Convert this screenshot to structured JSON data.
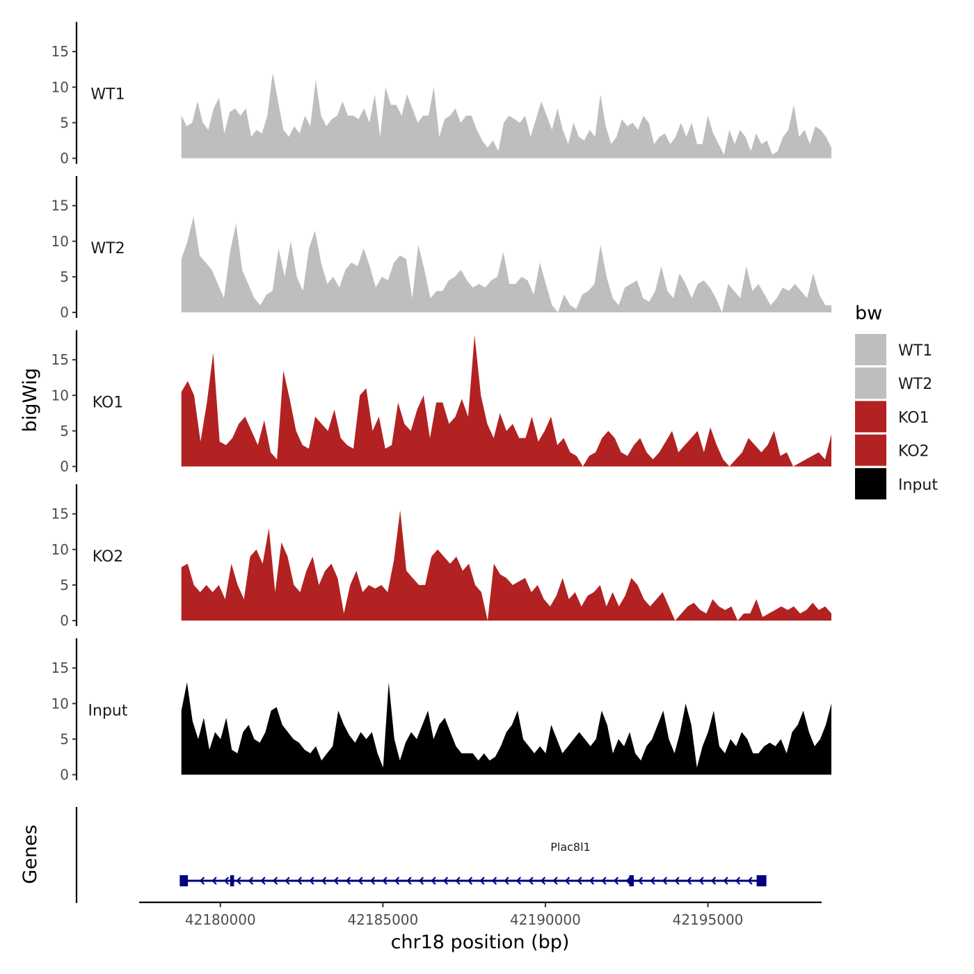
{
  "chart_data": {
    "type": "area",
    "ylabel": "bigWig",
    "xlabel": "chr18 position (bp)",
    "genes_label": "Genes",
    "xlim": [
      42177500,
      42198500
    ],
    "ylim": [
      0,
      19.5
    ],
    "y_ticks": [
      0,
      5,
      10,
      15
    ],
    "x_ticks": [
      42180000,
      42185000,
      42190000,
      42195000
    ],
    "x_tick_labels": [
      "42180000",
      "42185000",
      "42190000",
      "42195000"
    ],
    "x_start": 42178800,
    "x_end": 42198800,
    "legend": {
      "title": "bw",
      "entries": [
        {
          "label": "WT1",
          "color": "#bebebe"
        },
        {
          "label": "WT2",
          "color": "#bebebe"
        },
        {
          "label": "KO1",
          "color": "#b22222"
        },
        {
          "label": "KO2",
          "color": "#b22222"
        },
        {
          "label": "Input",
          "color": "#000000"
        }
      ]
    },
    "series": [
      {
        "name": "WT1",
        "color": "#bebebe",
        "values": [
          6,
          4.5,
          5,
          8,
          5,
          4,
          7,
          8.5,
          3.5,
          6.5,
          7,
          6,
          7,
          3,
          4,
          3.5,
          6,
          12,
          8,
          4,
          3,
          4.5,
          3.5,
          6,
          4.5,
          11,
          6,
          4.5,
          5.5,
          6,
          8,
          6,
          6,
          5.5,
          7,
          5,
          9,
          3,
          10,
          7.5,
          7.5,
          6,
          9,
          7,
          5,
          6,
          6,
          10,
          3,
          5.5,
          6,
          7,
          5,
          6,
          6,
          4,
          2.5,
          1.5,
          2.5,
          1,
          5,
          6,
          5.5,
          5,
          6,
          3,
          5.5,
          8,
          6,
          4,
          7,
          4,
          2,
          5,
          3,
          2.5,
          4,
          3,
          9,
          4.5,
          2,
          3,
          5.5,
          4.5,
          5,
          4,
          6,
          5,
          2,
          3,
          3.5,
          2,
          3,
          5,
          3,
          5,
          2,
          2,
          6,
          3.5,
          2,
          0.5,
          4,
          2,
          4,
          3,
          1,
          3.5,
          2,
          2.5,
          0.5,
          1,
          3,
          4,
          7.5,
          3,
          4,
          2,
          4.5,
          4,
          3,
          1.5
        ]
      },
      {
        "name": "WT2",
        "color": "#bebebe",
        "values": [
          7.5,
          10,
          13.5,
          8,
          7,
          6,
          4,
          2,
          8.5,
          12.5,
          6,
          4,
          2,
          1,
          2.5,
          3,
          9,
          5,
          10,
          5,
          3,
          9,
          11.5,
          7,
          4,
          5,
          3.5,
          6,
          7,
          6.5,
          9,
          6.5,
          3.5,
          5,
          4.5,
          7,
          8,
          7.5,
          2,
          9.5,
          6,
          2,
          3,
          3,
          4.5,
          5,
          6,
          4.5,
          3.5,
          4,
          3.5,
          4.5,
          5,
          8.5,
          4,
          4,
          5,
          4.5,
          2.5,
          7,
          4,
          1,
          0,
          2.5,
          1,
          0.5,
          2.5,
          3,
          4,
          9.5,
          5,
          2,
          1,
          3.5,
          4,
          4.5,
          2,
          1.5,
          3,
          6.5,
          3,
          2,
          5.5,
          4,
          2,
          4,
          4.5,
          3.5,
          2,
          0,
          4,
          3,
          2,
          6.5,
          3,
          4,
          2.5,
          1,
          2,
          3.5,
          3,
          4,
          3,
          2,
          5.5,
          2.5,
          1,
          1
        ]
      },
      {
        "name": "KO1",
        "color": "#b22222",
        "values": [
          10.5,
          12,
          10,
          3.5,
          9,
          16,
          3.5,
          3,
          4,
          6,
          7,
          5,
          3,
          6.5,
          2,
          1,
          13.5,
          9.5,
          5,
          3,
          2.5,
          7,
          6,
          5,
          8,
          4,
          3,
          2.5,
          10,
          11,
          5,
          7,
          2.5,
          3,
          9,
          6,
          5,
          8,
          10,
          4,
          9,
          9,
          6,
          7,
          9.5,
          7,
          18.5,
          10,
          6,
          4,
          7.5,
          5,
          6,
          4,
          4,
          7,
          3.5,
          5,
          7,
          3,
          4,
          2,
          1.5,
          0,
          1.5,
          2,
          4,
          5,
          4,
          2,
          1.5,
          3,
          4,
          2,
          1,
          2,
          3.5,
          5,
          2,
          3,
          4,
          5,
          2,
          5.5,
          3,
          1,
          0,
          1,
          2,
          4,
          3,
          2,
          3,
          5,
          1.5,
          2,
          0,
          0.5,
          1,
          1.5,
          2,
          1,
          4.5
        ]
      },
      {
        "name": "KO2",
        "color": "#b22222",
        "values": [
          7.5,
          8,
          5,
          4,
          5,
          4,
          5,
          3,
          8,
          5,
          3,
          9,
          10,
          8,
          13,
          4,
          11,
          9,
          5,
          4,
          7,
          9,
          5,
          7,
          8,
          6,
          1,
          5,
          7,
          4,
          5,
          4.5,
          5,
          4,
          8.5,
          15.5,
          7,
          6,
          5,
          5,
          9,
          10,
          9,
          8,
          9,
          7,
          8,
          5,
          4,
          0,
          8,
          6.5,
          6,
          5,
          5.5,
          6,
          4,
          5,
          3,
          2,
          3.5,
          6,
          3,
          4,
          2,
          3.5,
          4,
          5,
          2,
          4,
          2,
          3.5,
          6,
          5,
          3,
          2,
          3,
          4,
          2,
          0,
          1,
          2,
          2.5,
          1.5,
          1,
          3,
          2,
          1.5,
          2,
          0,
          1,
          1,
          3,
          0.5,
          1,
          1.5,
          2,
          1.5,
          2,
          1,
          1.5,
          2.5,
          1.5,
          2,
          1
        ]
      },
      {
        "name": "Input",
        "color": "#000000",
        "values": [
          9,
          13,
          7.5,
          5,
          8,
          3.5,
          6,
          5,
          8,
          3.5,
          3,
          6,
          7,
          5,
          4.5,
          6,
          9,
          9.5,
          7,
          6,
          5,
          4.5,
          3.5,
          3,
          4,
          2,
          3,
          4,
          9,
          7,
          5.5,
          4.5,
          6,
          5,
          6,
          3,
          1,
          13,
          5,
          2,
          4.5,
          6,
          5,
          7,
          9,
          5,
          7,
          8,
          6,
          4,
          3,
          3,
          3,
          2,
          3,
          2,
          2.5,
          4,
          6,
          7,
          9,
          5,
          4,
          3,
          4,
          3,
          7,
          5,
          3,
          4,
          5,
          6,
          5,
          4,
          5,
          9,
          7,
          3,
          5,
          4,
          6,
          3,
          2,
          4,
          5,
          7,
          9,
          5,
          3,
          6,
          10,
          7,
          1,
          4,
          6,
          9,
          4,
          3,
          5,
          4,
          6,
          5,
          3,
          3,
          4,
          4.5,
          4,
          5,
          3,
          6,
          7,
          9,
          6,
          4,
          5,
          7,
          10
        ]
      }
    ],
    "genes": [
      {
        "name": "Plac8l1",
        "color": "#000080",
        "strand": "-",
        "start": 42178750,
        "end": 42196800,
        "exons": [
          [
            42178750,
            42179000
          ],
          [
            42180300,
            42180420
          ],
          [
            42192580,
            42192720
          ],
          [
            42196500,
            42196800
          ]
        ]
      }
    ]
  }
}
